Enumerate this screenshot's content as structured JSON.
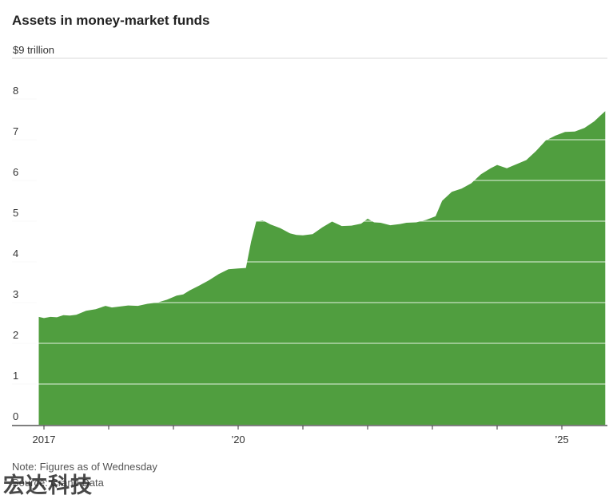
{
  "header": {
    "title": "Assets in money-market funds"
  },
  "footer": {
    "note": "Note: Figures as of Wednesday",
    "source": "Source: Crane Data",
    "watermark": "宏达科技"
  },
  "colors": {
    "area": "#509e3f",
    "grid": "#d9d9d9",
    "axis": "#333333"
  },
  "chart_data": {
    "type": "area",
    "title": "Assets in money-market funds",
    "unit_label": "$9 trillion",
    "ylim": [
      0,
      9
    ],
    "xlim": [
      2017.0,
      2025.67
    ],
    "y_ticks": [
      {
        "value": 0,
        "label": "0"
      },
      {
        "value": 1,
        "label": "1"
      },
      {
        "value": 2,
        "label": "2"
      },
      {
        "value": 3,
        "label": "3"
      },
      {
        "value": 4,
        "label": "4"
      },
      {
        "value": 5,
        "label": "5"
      },
      {
        "value": 6,
        "label": "6"
      },
      {
        "value": 7,
        "label": "7"
      },
      {
        "value": 8,
        "label": "8"
      },
      {
        "value": 9,
        "label": "$9 trillion"
      }
    ],
    "x_ticks": [
      {
        "value": 2017,
        "label": "2017"
      },
      {
        "value": 2018,
        "label": ""
      },
      {
        "value": 2019,
        "label": ""
      },
      {
        "value": 2020,
        "label": "’20"
      },
      {
        "value": 2021,
        "label": ""
      },
      {
        "value": 2022,
        "label": ""
      },
      {
        "value": 2023,
        "label": ""
      },
      {
        "value": 2024,
        "label": ""
      },
      {
        "value": 2025,
        "label": "’25"
      }
    ],
    "grid": true,
    "series": [
      {
        "values": [
          [
            2016.92,
            2.65
          ],
          [
            2017.0,
            2.62
          ],
          [
            2017.1,
            2.65
          ],
          [
            2017.2,
            2.64
          ],
          [
            2017.3,
            2.69
          ],
          [
            2017.4,
            2.68
          ],
          [
            2017.5,
            2.7
          ],
          [
            2017.65,
            2.8
          ],
          [
            2017.8,
            2.84
          ],
          [
            2017.95,
            2.92
          ],
          [
            2018.05,
            2.88
          ],
          [
            2018.15,
            2.9
          ],
          [
            2018.3,
            2.93
          ],
          [
            2018.45,
            2.92
          ],
          [
            2018.6,
            2.97
          ],
          [
            2018.75,
            3.0
          ],
          [
            2018.9,
            3.07
          ],
          [
            2019.05,
            3.17
          ],
          [
            2019.15,
            3.2
          ],
          [
            2019.25,
            3.3
          ],
          [
            2019.4,
            3.42
          ],
          [
            2019.55,
            3.55
          ],
          [
            2019.7,
            3.7
          ],
          [
            2019.85,
            3.82
          ],
          [
            2020.0,
            3.84
          ],
          [
            2020.12,
            3.85
          ],
          [
            2020.2,
            4.5
          ],
          [
            2020.28,
            5.0
          ],
          [
            2020.38,
            5.02
          ],
          [
            2020.5,
            4.92
          ],
          [
            2020.65,
            4.83
          ],
          [
            2020.8,
            4.7
          ],
          [
            2020.9,
            4.66
          ],
          [
            2021.0,
            4.65
          ],
          [
            2021.15,
            4.68
          ],
          [
            2021.3,
            4.85
          ],
          [
            2021.45,
            4.99
          ],
          [
            2021.6,
            4.88
          ],
          [
            2021.75,
            4.89
          ],
          [
            2021.9,
            4.94
          ],
          [
            2022.0,
            5.06
          ],
          [
            2022.1,
            4.97
          ],
          [
            2022.2,
            4.96
          ],
          [
            2022.35,
            4.9
          ],
          [
            2022.5,
            4.93
          ],
          [
            2022.6,
            4.96
          ],
          [
            2022.75,
            4.97
          ],
          [
            2022.9,
            5.03
          ],
          [
            2023.05,
            5.12
          ],
          [
            2023.15,
            5.5
          ],
          [
            2023.3,
            5.72
          ],
          [
            2023.45,
            5.8
          ],
          [
            2023.6,
            5.93
          ],
          [
            2023.75,
            6.15
          ],
          [
            2023.9,
            6.3
          ],
          [
            2024.0,
            6.38
          ],
          [
            2024.15,
            6.3
          ],
          [
            2024.3,
            6.4
          ],
          [
            2024.45,
            6.5
          ],
          [
            2024.6,
            6.72
          ],
          [
            2024.75,
            6.98
          ],
          [
            2024.9,
            7.1
          ],
          [
            2025.05,
            7.19
          ],
          [
            2025.2,
            7.2
          ],
          [
            2025.35,
            7.29
          ],
          [
            2025.5,
            7.45
          ],
          [
            2025.6,
            7.6
          ],
          [
            2025.67,
            7.7
          ]
        ]
      }
    ]
  }
}
